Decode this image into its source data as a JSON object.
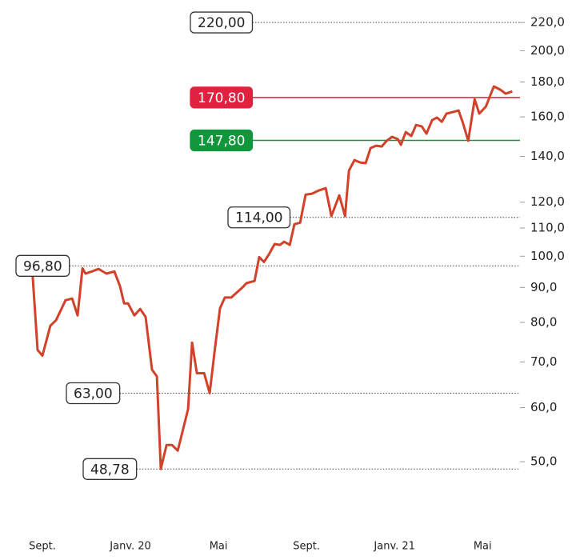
{
  "chart_data": {
    "type": "line",
    "log_scale_y": true,
    "xlim": [
      -1.2,
      21.7
    ],
    "xticks": [
      {
        "value": 0,
        "label": "Sept."
      },
      {
        "value": 4,
        "label": "Janv. 20"
      },
      {
        "value": 8,
        "label": "Mai"
      },
      {
        "value": 12,
        "label": "Sept."
      },
      {
        "value": 16,
        "label": "Janv. 21"
      },
      {
        "value": 20,
        "label": "Mai"
      }
    ],
    "ylim": [
      42.2,
      231
    ],
    "yticks": [
      {
        "value": 220,
        "label": "220,0"
      },
      {
        "value": 200,
        "label": "200,0"
      },
      {
        "value": 180,
        "label": "180,0"
      },
      {
        "value": 160,
        "label": "160,0"
      },
      {
        "value": 140,
        "label": "140,0"
      },
      {
        "value": 120,
        "label": "120,0"
      },
      {
        "value": 110,
        "label": "110,0"
      },
      {
        "value": 100,
        "label": "100,0"
      },
      {
        "value": 90,
        "label": "90,0"
      },
      {
        "value": 80,
        "label": "80,0"
      },
      {
        "value": 70,
        "label": "70,0"
      },
      {
        "value": 60,
        "label": "60,0"
      },
      {
        "value": 50,
        "label": "50,0"
      }
    ],
    "series": [
      {
        "color": "#d2412a",
        "x": [
          -0.47,
          -0.22,
          0,
          0.36,
          0.62,
          1.05,
          1.35,
          1.6,
          1.82,
          1.96,
          2.25,
          2.55,
          2.91,
          3.27,
          3.53,
          3.71,
          3.89,
          4.18,
          4.44,
          4.69,
          4.98,
          5.2,
          5.38,
          5.64,
          5.89,
          6.15,
          6.62,
          6.8,
          7.02,
          7.35,
          7.6,
          7.82,
          8.07,
          8.29,
          8.58,
          9.09,
          9.27,
          9.64,
          9.85,
          10.07,
          10.29,
          10.55,
          10.8,
          10.98,
          11.24,
          11.45,
          11.71,
          11.96,
          12.25,
          12.55,
          12.87,
          13.13,
          13.49,
          13.75,
          13.93,
          14.18,
          14.44,
          14.69,
          14.91,
          15.16,
          15.42,
          15.64,
          15.89,
          16.15,
          16.29,
          16.51,
          16.76,
          16.98,
          17.24,
          17.45,
          17.71,
          17.93,
          18.15,
          18.36,
          18.65,
          18.91,
          19.09,
          19.35,
          19.64,
          19.85,
          20.15,
          20.51,
          20.8,
          21.05,
          21.35
        ],
        "values": [
          96.3,
          72.9,
          71.5,
          79.1,
          80.6,
          86.2,
          86.7,
          81.9,
          96.0,
          94.3,
          95.0,
          95.8,
          94.3,
          95.0,
          90.3,
          85.3,
          85.3,
          81.9,
          83.7,
          81.5,
          68.2,
          66.7,
          48.8,
          52.9,
          52.9,
          51.9,
          59.7,
          74.7,
          67.4,
          67.4,
          63.0,
          72.3,
          83.9,
          87.0,
          87.0,
          90.0,
          91.3,
          92.0,
          99.7,
          98.1,
          100.6,
          104.2,
          103.9,
          105.0,
          103.9,
          111.4,
          112.0,
          123.1,
          123.5,
          124.8,
          125.8,
          114.5,
          122.8,
          114.5,
          133.5,
          138.3,
          137.2,
          136.9,
          144.0,
          145.2,
          144.8,
          147.6,
          149.6,
          148.4,
          145.6,
          152.0,
          150.0,
          155.7,
          154.9,
          151.2,
          158.3,
          159.6,
          157.4,
          161.8,
          162.6,
          163.5,
          157.4,
          147.6,
          169.8,
          161.8,
          165.7,
          177.3,
          175.4,
          173.0,
          174.4
        ]
      }
    ],
    "annotations": [
      {
        "value": 220,
        "label": "220,00"
      },
      {
        "value": 170.8,
        "label": "170,80",
        "color": "#e0213f"
      },
      {
        "value": 147.8,
        "label": "147,80",
        "color": "#12963c"
      },
      {
        "value": 114,
        "label": "114,00"
      },
      {
        "value": 96.8,
        "label": "96,80"
      },
      {
        "value": 63,
        "label": "63,00"
      },
      {
        "value": 48.78,
        "label": "48,78"
      }
    ]
  }
}
